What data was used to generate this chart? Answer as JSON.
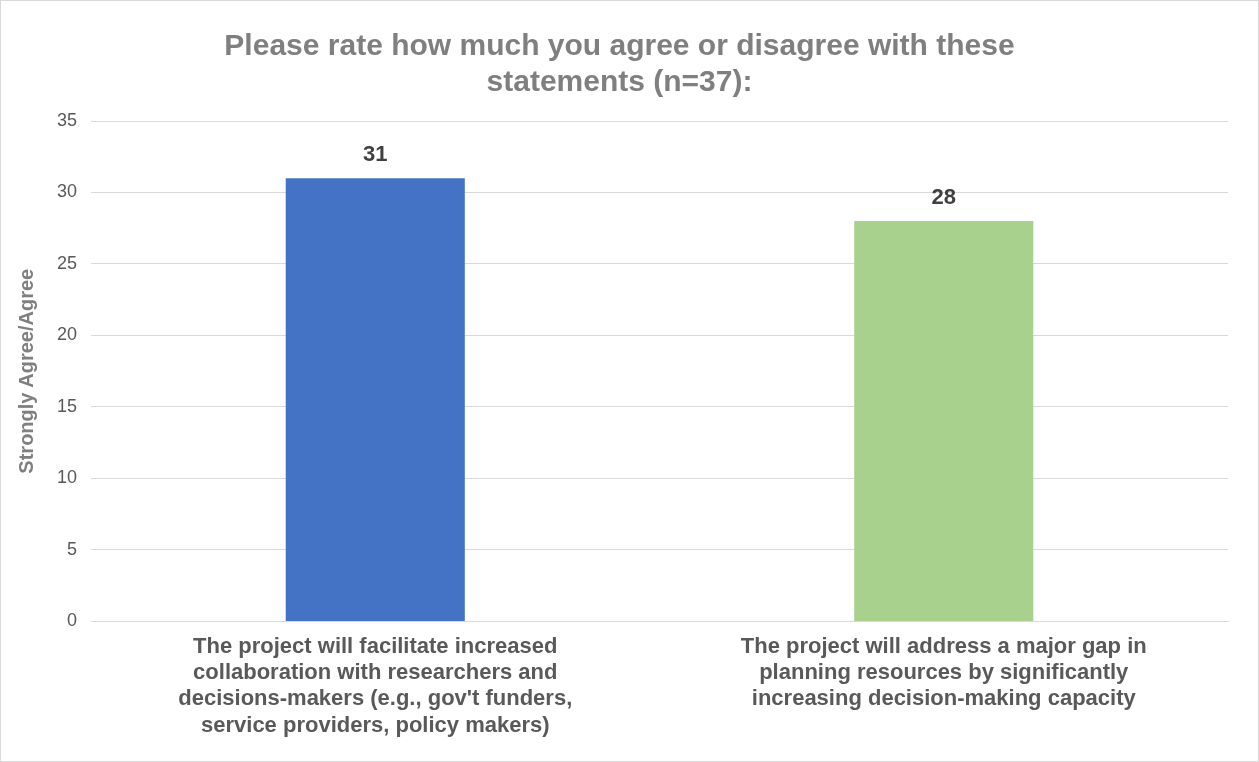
{
  "chart_data": {
    "type": "bar",
    "title": "Please rate how much you agree or disagree with these statements (n=37):",
    "ylabel": "Strongly Agree/Agree",
    "categories": [
      "The project will facilitate increased collaboration with researchers and decisions-makers (e.g., gov't funders, service providers, policy makers)",
      "The project will address a major gap in planning resources by significantly increasing decision-making capacity"
    ],
    "values": [
      31,
      28
    ],
    "colors": [
      "#4472c4",
      "#a9d18e"
    ],
    "ylim": [
      0,
      35
    ],
    "yticks": [
      0,
      5,
      10,
      15,
      20,
      25,
      30,
      35
    ],
    "grid": "y",
    "legend": false,
    "data_labels": true
  }
}
